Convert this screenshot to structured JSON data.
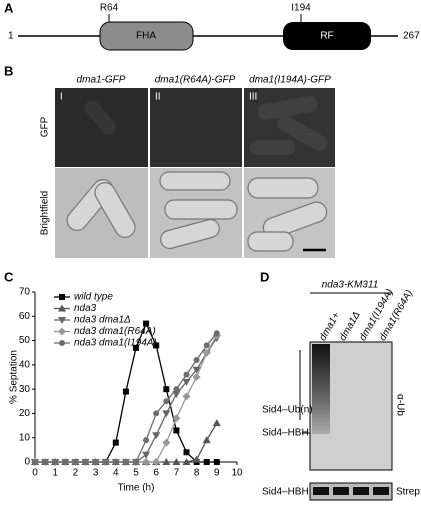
{
  "panels": {
    "a": {
      "label": "A",
      "start": "1",
      "end": "267",
      "site1": "R64",
      "site2": "I194",
      "domain1": "FHA",
      "domain2": "RF"
    },
    "b": {
      "label": "B",
      "columns": [
        "dma1-GFP",
        "dma1(R64A)-GFP",
        "dma1(I194A)-GFP"
      ],
      "numerals": [
        "I",
        "II",
        "III"
      ],
      "rows": [
        "GFP",
        "Brightfield"
      ]
    },
    "c": {
      "label": "C"
    },
    "d": {
      "label": "D",
      "strain": "nda3-KM311",
      "lanes": [
        "dma1+",
        "dma1Δ",
        "dma1(I194A)",
        "dma1(R64A)"
      ],
      "bands": [
        "Sid4–Ub(n)",
        "Sid4–HBH"
      ],
      "antibody": "α-Ub",
      "loading_band": "Sid4–HBH",
      "loading_stain": "Strep."
    }
  },
  "chart_data": {
    "type": "line",
    "xlabel": "Time (h)",
    "ylabel": "% Septation",
    "x": [
      0,
      0.5,
      1,
      1.5,
      2,
      2.5,
      3,
      3.5,
      4,
      4.5,
      5,
      5.5,
      6,
      6.5,
      7,
      7.5,
      8,
      8.5,
      9
    ],
    "xlim": [
      0,
      10
    ],
    "ylim": [
      0,
      70
    ],
    "xticks": [
      0,
      1,
      2,
      3,
      4,
      5,
      6,
      7,
      8,
      9,
      10
    ],
    "yticks": [
      0,
      10,
      20,
      30,
      40,
      50,
      60,
      70
    ],
    "series": [
      {
        "name": "wild type",
        "color": "#000000",
        "marker": "square",
        "values": [
          0,
          0,
          0,
          0,
          0,
          0,
          0,
          0,
          8,
          29,
          47,
          57,
          48,
          30,
          13,
          4,
          0,
          0,
          0
        ]
      },
      {
        "name": "nda3",
        "color": "#555555",
        "marker": "triangle-up",
        "values": [
          0,
          0,
          0,
          0,
          0,
          0,
          0,
          0,
          0,
          0,
          0,
          0,
          0,
          0,
          0,
          0,
          1,
          9,
          16
        ]
      },
      {
        "name": "nda3 dma1Δ",
        "color": "#666666",
        "marker": "triangle-down",
        "values": [
          0,
          0,
          0,
          0,
          0,
          0,
          0,
          0,
          0,
          0,
          0,
          3,
          11,
          20,
          28,
          33,
          38,
          45,
          51
        ]
      },
      {
        "name": "nda3 dma1(R64A)",
        "color": "#999999",
        "marker": "diamond",
        "values": [
          0,
          0,
          0,
          0,
          0,
          0,
          0,
          0,
          0,
          0,
          0,
          0,
          0,
          8,
          18,
          27,
          35,
          45,
          52
        ]
      },
      {
        "name": "nda3 dma1(I194A)",
        "color": "#6e6e6e",
        "marker": "circle",
        "values": [
          0,
          0,
          0,
          0,
          0,
          0,
          0,
          0,
          0,
          0,
          0,
          9,
          20,
          25,
          30,
          36,
          42,
          48,
          53
        ]
      }
    ]
  }
}
